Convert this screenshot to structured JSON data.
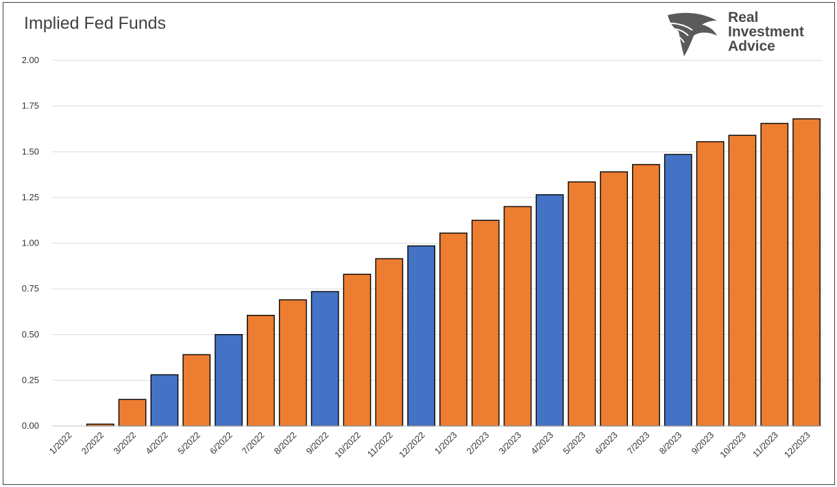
{
  "chart_data": {
    "type": "bar",
    "title": "Implied Fed Funds",
    "xlabel": "",
    "ylabel": "",
    "ylim": [
      0,
      2.0
    ],
    "yticks": [
      "0.00",
      "0.25",
      "0.50",
      "0.75",
      "1.00",
      "1.25",
      "1.50",
      "1.75",
      "2.00"
    ],
    "grid": true,
    "categories": [
      "1/2022",
      "2/2022",
      "3/2022",
      "4/2022",
      "5/2022",
      "6/2022",
      "7/2022",
      "8/2022",
      "9/2022",
      "10/2022",
      "11/2022",
      "12/2022",
      "1/2023",
      "2/2023",
      "3/2023",
      "4/2023",
      "5/2023",
      "6/2023",
      "7/2023",
      "8/2023",
      "9/2023",
      "10/2023",
      "11/2023",
      "12/2023"
    ],
    "values": [
      0.0,
      0.01,
      0.145,
      0.28,
      0.39,
      0.5,
      0.605,
      0.69,
      0.735,
      0.83,
      0.915,
      0.985,
      1.055,
      1.125,
      1.2,
      1.265,
      1.335,
      1.39,
      1.43,
      1.485,
      1.555,
      1.59,
      1.655,
      1.68
    ],
    "bar_colors": [
      "#ED7D31",
      "#ED7D31",
      "#ED7D31",
      "#4472C4",
      "#ED7D31",
      "#4472C4",
      "#ED7D31",
      "#ED7D31",
      "#4472C4",
      "#ED7D31",
      "#ED7D31",
      "#4472C4",
      "#ED7D31",
      "#ED7D31",
      "#ED7D31",
      "#4472C4",
      "#ED7D31",
      "#ED7D31",
      "#ED7D31",
      "#4472C4",
      "#ED7D31",
      "#ED7D31",
      "#ED7D31",
      "#ED7D31"
    ],
    "colors": {
      "orange": "#ED7D31",
      "blue": "#4472C4",
      "gridline": "#d9d9d9"
    }
  },
  "logo": {
    "icon": "eagle-head-icon",
    "line1": "Real",
    "line2": "Investment",
    "line3": "Advice"
  }
}
